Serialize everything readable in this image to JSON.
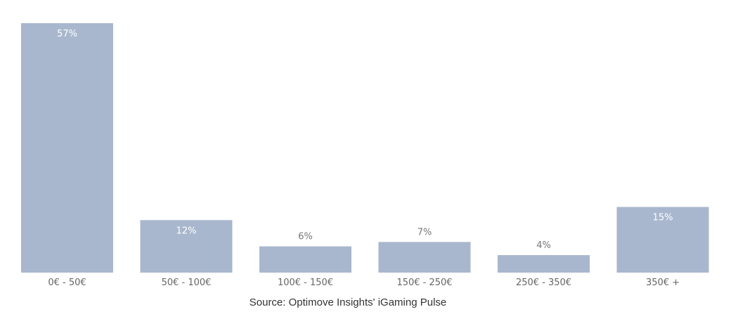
{
  "chart_data": {
    "type": "bar",
    "categories": [
      "0€ - 50€",
      "50€ - 100€",
      "100€ - 150€",
      "150€ - 250€",
      "250€ - 350€",
      "350€ +"
    ],
    "values": [
      57,
      12,
      6,
      7,
      4,
      15
    ],
    "value_labels": [
      "57%",
      "12%",
      "6%",
      "7%",
      "4%",
      "15%"
    ],
    "ylim": [
      0,
      57
    ],
    "grid": false,
    "legend": "none",
    "bar_color": "#a8b7cd"
  },
  "source": "Source: Optimove Insights' iGaming Pulse"
}
